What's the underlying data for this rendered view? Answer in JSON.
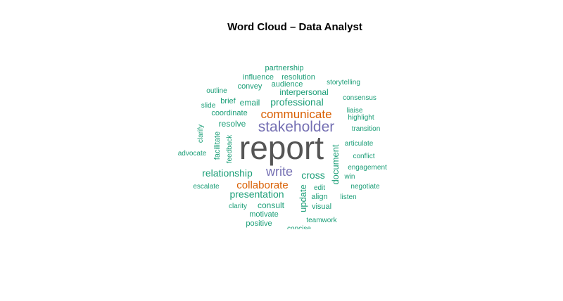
{
  "chart_data": {
    "type": "wordcloud",
    "title": "Word Cloud – Data Analyst",
    "colors": {
      "teal": "#1b9e77",
      "orange": "#d95f02",
      "purple": "#7570b3",
      "gray": "#555555"
    },
    "words": [
      {
        "text": "report",
        "color": "gray"
      },
      {
        "text": "stakeholder",
        "color": "purple"
      },
      {
        "text": "write",
        "color": "purple"
      },
      {
        "text": "communicate",
        "color": "orange"
      },
      {
        "text": "collaborate",
        "color": "orange"
      },
      {
        "text": "professional",
        "color": "teal"
      },
      {
        "text": "relationship",
        "color": "teal"
      },
      {
        "text": "presentation",
        "color": "teal"
      },
      {
        "text": "cross",
        "color": "teal"
      },
      {
        "text": "document",
        "color": "teal"
      },
      {
        "text": "update",
        "color": "teal"
      },
      {
        "text": "interpersonal",
        "color": "teal"
      },
      {
        "text": "resolve",
        "color": "teal"
      },
      {
        "text": "coordinate",
        "color": "teal"
      },
      {
        "text": "email",
        "color": "teal"
      },
      {
        "text": "consult",
        "color": "teal"
      },
      {
        "text": "motivate",
        "color": "teal"
      },
      {
        "text": "positive",
        "color": "teal"
      },
      {
        "text": "audience",
        "color": "teal"
      },
      {
        "text": "convey",
        "color": "teal"
      },
      {
        "text": "influence",
        "color": "teal"
      },
      {
        "text": "resolution",
        "color": "teal"
      },
      {
        "text": "partnership",
        "color": "teal"
      },
      {
        "text": "brief",
        "color": "teal"
      },
      {
        "text": "outline",
        "color": "teal"
      },
      {
        "text": "slide",
        "color": "teal"
      },
      {
        "text": "storytelling",
        "color": "teal"
      },
      {
        "text": "consensus",
        "color": "teal"
      },
      {
        "text": "liaise",
        "color": "teal"
      },
      {
        "text": "highlight",
        "color": "teal"
      },
      {
        "text": "transition",
        "color": "teal"
      },
      {
        "text": "articulate",
        "color": "teal"
      },
      {
        "text": "conflict",
        "color": "teal"
      },
      {
        "text": "engagement",
        "color": "teal"
      },
      {
        "text": "win",
        "color": "teal"
      },
      {
        "text": "negotiate",
        "color": "teal"
      },
      {
        "text": "listen",
        "color": "teal"
      },
      {
        "text": "edit",
        "color": "teal"
      },
      {
        "text": "align",
        "color": "teal"
      },
      {
        "text": "visual",
        "color": "teal"
      },
      {
        "text": "teamwork",
        "color": "teal"
      },
      {
        "text": "concise",
        "color": "teal"
      },
      {
        "text": "clarity",
        "color": "teal"
      },
      {
        "text": "escalate",
        "color": "teal"
      },
      {
        "text": "advocate",
        "color": "teal"
      },
      {
        "text": "clarify",
        "color": "teal"
      },
      {
        "text": "facilitate",
        "color": "teal"
      },
      {
        "text": "feedback",
        "color": "teal"
      }
    ]
  }
}
